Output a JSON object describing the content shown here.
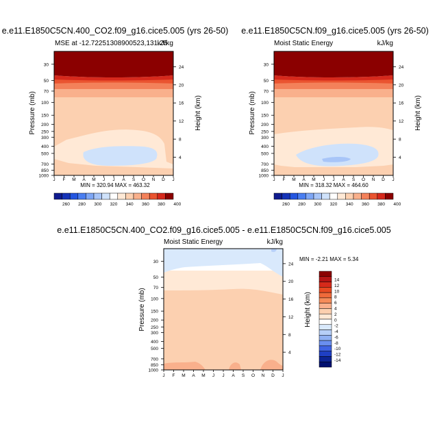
{
  "months": [
    "J",
    "F",
    "M",
    "A",
    "M",
    "J",
    "J",
    "A",
    "S",
    "O",
    "N",
    "D",
    "J"
  ],
  "colors": {
    "cb1": [
      "#0f1b8f",
      "#1533b8",
      "#2456e0",
      "#4a7ef0",
      "#7ea6f5",
      "#a8c5f8",
      "#cfe2fb",
      "#ffffff",
      "#ffe9d6",
      "#fcd0b0",
      "#f9b08c",
      "#f3815a",
      "#ea5430",
      "#d6291c",
      "#8b0000"
    ],
    "cb3": [
      "#8b0000",
      "#b51414",
      "#d62a1a",
      "#e84a22",
      "#f06a3a",
      "#f58c5a",
      "#f9b08c",
      "#fcd0b0",
      "#ffe9d6",
      "#ffffff",
      "#d9e9fc",
      "#b6cff8",
      "#8fb0f3",
      "#6a8ff0",
      "#3f63e3",
      "#1f3fc4",
      "#0d2494",
      "#001070"
    ]
  },
  "chart_data": [
    {
      "type": "heatmap",
      "title": "e.e11.E1850C5CN.400_CO2.f09_g16.cice5.005 (yrs 26-50)",
      "subtitle_left": "MSE at -12.72251308900523,131.25",
      "subtitle_right": "kJ/kg",
      "xlabel": "",
      "ylabel": "Pressure (mb)",
      "ylabel_right": "Height (km)",
      "x_ticks": [
        "J",
        "F",
        "M",
        "A",
        "M",
        "J",
        "J",
        "A",
        "S",
        "O",
        "N",
        "D",
        "J"
      ],
      "pressure_ticks": [
        30,
        50,
        70,
        100,
        150,
        200,
        250,
        300,
        400,
        500,
        700,
        850,
        1000
      ],
      "height_ticks": [
        24,
        20,
        16,
        12,
        8,
        4
      ],
      "minmax_text": "MIN = 320.94  MAX = 463.32"
    },
    {
      "type": "heatmap",
      "title": "e.e11.E1850C5CN.f09_g16.cice5.005 (yrs 26-50)",
      "subtitle_left": "Moist Static Energy",
      "subtitle_right": "kJ/kg",
      "xlabel": "",
      "ylabel": "Pressure (mb)",
      "ylabel_right": "Height (km)",
      "x_ticks": [
        "J",
        "F",
        "M",
        "A",
        "M",
        "J",
        "J",
        "A",
        "S",
        "O",
        "N",
        "D",
        "J"
      ],
      "pressure_ticks": [
        30,
        50,
        70,
        100,
        150,
        200,
        250,
        300,
        400,
        500,
        700,
        850,
        1000
      ],
      "height_ticks": [
        24,
        20,
        16,
        12,
        8,
        4
      ],
      "minmax_text": "MIN = 318.32  MAX = 464.60",
      "colorbar_labels": [
        "260",
        "280",
        "300",
        "320",
        "340",
        "360",
        "380",
        "400"
      ]
    },
    {
      "type": "heatmap",
      "title": "e.e11.E1850C5CN.400_CO2.f09_g16.cice5.005 - e.e11.E1850C5CN.f09_g16.cice5.005",
      "subtitle_left": "Moist Static Energy",
      "subtitle_right": "kJ/kg",
      "xlabel": "",
      "ylabel": "Pressure (mb)",
      "ylabel_right": "Height (km)",
      "x_ticks": [
        "J",
        "F",
        "M",
        "A",
        "M",
        "J",
        "J",
        "A",
        "S",
        "O",
        "N",
        "D",
        "J"
      ],
      "pressure_ticks": [
        30,
        50,
        70,
        100,
        150,
        200,
        250,
        300,
        400,
        500,
        700,
        850,
        1000
      ],
      "height_ticks": [
        24,
        20,
        16,
        12,
        8,
        4
      ],
      "minmax_text": "MIN =  -2.21  MAX =   5.34",
      "colorbar_labels": [
        "14",
        "12",
        "10",
        "8",
        "6",
        "4",
        "2",
        "0",
        "-2",
        "-4",
        "-6",
        "-8",
        "-10",
        "-12",
        "-14"
      ]
    }
  ]
}
